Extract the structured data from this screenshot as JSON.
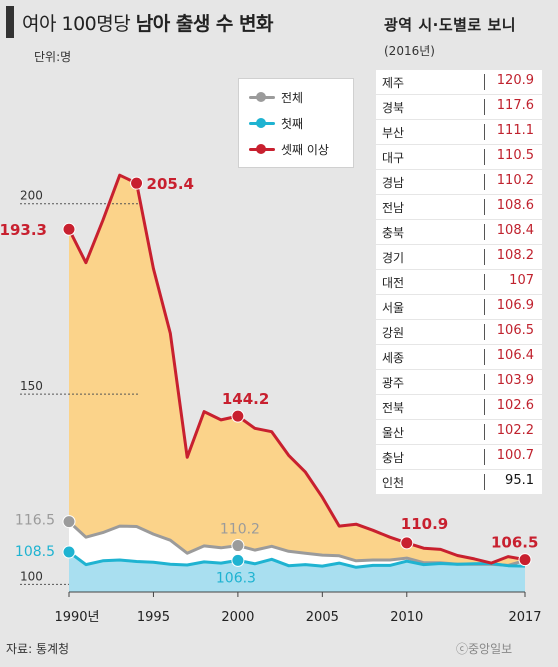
{
  "title": {
    "light": "여아 100명당",
    "bold": "남아 출생 수 변화"
  },
  "unit": "단위:명",
  "legend": [
    {
      "label": "전체",
      "color": "#9b9b9b"
    },
    {
      "label": "첫째",
      "color": "#1fb3d1"
    },
    {
      "label": "셋째 이상",
      "color": "#c8202f"
    }
  ],
  "source": "자료: 통계청",
  "logo": "ⓒ중앙일보",
  "colors": {
    "third_area": "#fbd38a",
    "total_area": "#ffffff",
    "first_area": "#a9dff0"
  },
  "chart_data": {
    "type": "line",
    "x": [
      1990,
      1991,
      1992,
      1993,
      1994,
      1995,
      1996,
      1997,
      1998,
      1999,
      2000,
      2001,
      2002,
      2003,
      2004,
      2005,
      2006,
      2007,
      2008,
      2009,
      2010,
      2011,
      2012,
      2013,
      2014,
      2015,
      2016,
      2017
    ],
    "x_ticks": [
      "1990년",
      "1995",
      "2000",
      "2005",
      "2010",
      "2017"
    ],
    "x_tick_values": [
      1990,
      1995,
      2000,
      2005,
      2010,
      2017
    ],
    "y_ticks": [
      "100",
      "150",
      "200"
    ],
    "y_tick_values": [
      100,
      150,
      200
    ],
    "ylim": [
      98,
      222
    ],
    "series": [
      {
        "name": "전체",
        "color": "#9b9b9b",
        "values": [
          116.5,
          112.4,
          113.6,
          115.3,
          115.2,
          113.2,
          111.6,
          108.2,
          110.1,
          109.6,
          110.2,
          109.0,
          110.0,
          108.7,
          108.2,
          107.7,
          107.5,
          106.2,
          106.4,
          106.4,
          106.9,
          105.7,
          105.7,
          105.3,
          105.3,
          105.3,
          105.0,
          106.3
        ]
      },
      {
        "name": "첫째",
        "color": "#1fb3d1",
        "values": [
          108.5,
          105.2,
          106.2,
          106.4,
          106.0,
          105.8,
          105.3,
          105.1,
          105.9,
          105.6,
          106.3,
          105.4,
          106.6,
          104.9,
          105.2,
          104.8,
          105.6,
          104.5,
          105.0,
          105.0,
          106.1,
          105.2,
          105.5,
          105.3,
          105.4,
          105.5,
          104.9,
          104.8
        ]
      },
      {
        "name": "셋째 이상",
        "color": "#c8202f",
        "values": [
          193.3,
          184.5,
          195.6,
          207.5,
          205.4,
          183.0,
          166.0,
          133.4,
          145.4,
          143.2,
          144.2,
          141.0,
          140.1,
          133.9,
          129.5,
          122.9,
          115.3,
          115.8,
          114.2,
          112.4,
          110.9,
          109.5,
          109.2,
          107.6,
          106.7,
          105.6,
          107.3,
          106.5
        ]
      }
    ],
    "annotations": [
      {
        "series": "셋째 이상",
        "x": 1990,
        "text": "193.3"
      },
      {
        "series": "셋째 이상",
        "x": 1994,
        "text": "205.4"
      },
      {
        "series": "셋째 이상",
        "x": 2000,
        "text": "144.2"
      },
      {
        "series": "셋째 이상",
        "x": 2010,
        "text": "110.9"
      },
      {
        "series": "셋째 이상",
        "x": 2017,
        "text": "106.5"
      },
      {
        "series": "전체",
        "x": 1990,
        "text": "116.5"
      },
      {
        "series": "전체",
        "x": 2000,
        "text": "110.2"
      },
      {
        "series": "첫째",
        "x": 1990,
        "text": "108.5"
      },
      {
        "series": "첫째",
        "x": 2000,
        "text": "106.3"
      }
    ]
  },
  "regional": {
    "title": "광역 시·도별로 보니",
    "subtitle": "(2016년)",
    "rows": [
      {
        "name": "제주",
        "value": "120.9"
      },
      {
        "name": "경북",
        "value": "117.6"
      },
      {
        "name": "부산",
        "value": "111.1"
      },
      {
        "name": "대구",
        "value": "110.5"
      },
      {
        "name": "경남",
        "value": "110.2"
      },
      {
        "name": "전남",
        "value": "108.6"
      },
      {
        "name": "충북",
        "value": "108.4"
      },
      {
        "name": "경기",
        "value": "108.2"
      },
      {
        "name": "대전",
        "value": "107"
      },
      {
        "name": "서울",
        "value": "106.9"
      },
      {
        "name": "강원",
        "value": "106.5"
      },
      {
        "name": "세종",
        "value": "106.4"
      },
      {
        "name": "광주",
        "value": "103.9"
      },
      {
        "name": "전북",
        "value": "102.6"
      },
      {
        "name": "울산",
        "value": "102.2"
      },
      {
        "name": "충남",
        "value": "100.7"
      },
      {
        "name": "인천",
        "value": "95.1"
      }
    ]
  }
}
